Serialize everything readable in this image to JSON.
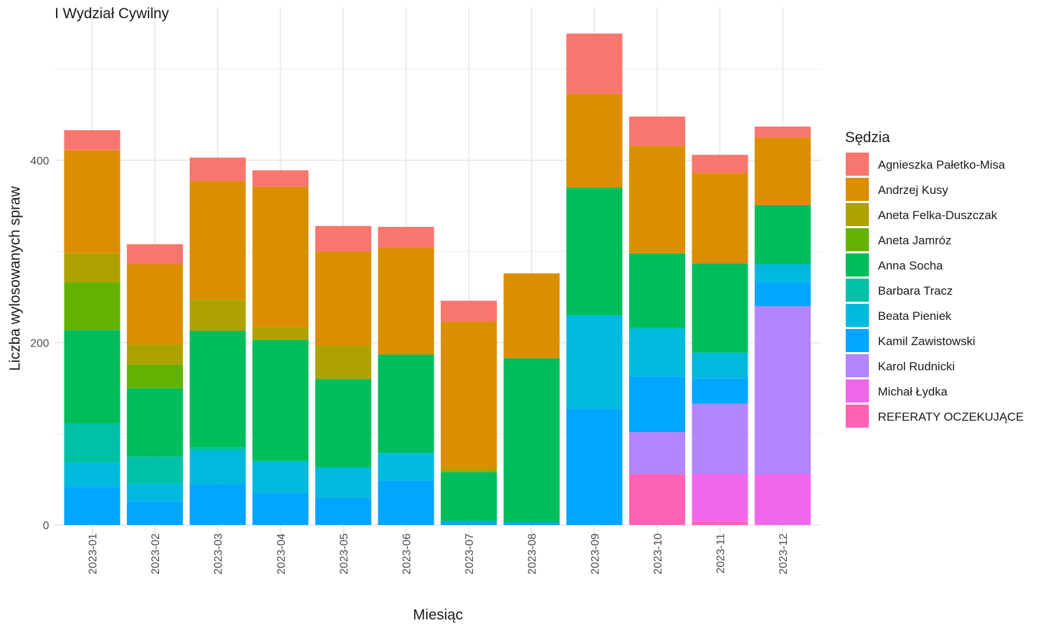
{
  "chart_data": {
    "type": "bar",
    "stacked": true,
    "title": "I Wydział Cywilny",
    "xlabel": "Miesiąc",
    "ylabel": "Liczba wylosowanych spraw",
    "legend_title": "Sędzia",
    "legend_position": "right",
    "grid": true,
    "ylim": [
      -22,
      563
    ],
    "yticks": [
      0,
      200,
      400
    ],
    "categories": [
      "2023-01",
      "2023-02",
      "2023-03",
      "2023-04",
      "2023-05",
      "2023-06",
      "2023-07",
      "2023-08",
      "2023-09",
      "2023-10",
      "2023-11",
      "2023-12"
    ],
    "series": [
      {
        "name": "Agnieszka Pałetko-Misa",
        "color": "#F8766D",
        "values": [
          22,
          22,
          26,
          18,
          28,
          23,
          23,
          0,
          66,
          32,
          20,
          12
        ]
      },
      {
        "name": "Andrzej Kusy",
        "color": "#DB8E00",
        "values": [
          113,
          88,
          130,
          154,
          103,
          117,
          160,
          93,
          103,
          118,
          99,
          74
        ]
      },
      {
        "name": "Aneta Felka-Duszczak",
        "color": "#AEA200",
        "values": [
          32,
          22,
          34,
          14,
          37,
          0,
          5,
          0,
          0,
          0,
          0,
          0
        ]
      },
      {
        "name": "Aneta Jamróz",
        "color": "#64B200",
        "values": [
          52,
          26,
          0,
          0,
          0,
          0,
          0,
          0,
          0,
          0,
          0,
          0
        ]
      },
      {
        "name": "Anna Socha",
        "color": "#00BD5C",
        "values": [
          103,
          75,
          128,
          133,
          97,
          108,
          54,
          180,
          140,
          82,
          98,
          65
        ]
      },
      {
        "name": "Barbara Tracz",
        "color": "#00C1A7",
        "values": [
          43,
          30,
          4,
          0,
          0,
          0,
          0,
          0,
          0,
          0,
          0,
          0
        ]
      },
      {
        "name": "Beata Pieniek",
        "color": "#00BADE",
        "values": [
          26,
          19,
          36,
          35,
          33,
          30,
          0,
          0,
          103,
          53,
          28,
          20
        ]
      },
      {
        "name": "Kamil Zawistowski",
        "color": "#00A6FF",
        "values": [
          42,
          26,
          45,
          35,
          30,
          49,
          4,
          3,
          127,
          61,
          28,
          26
        ]
      },
      {
        "name": "Karol Rudnicki",
        "color": "#B385FF",
        "values": [
          0,
          0,
          0,
          0,
          0,
          0,
          0,
          0,
          0,
          46,
          77,
          184
        ]
      },
      {
        "name": "Michał Łydka",
        "color": "#EF67EB",
        "values": [
          0,
          0,
          0,
          0,
          0,
          0,
          0,
          0,
          0,
          0,
          52,
          56
        ]
      },
      {
        "name": "REFERATY OCZEKUJĄCE",
        "color": "#FF63B6",
        "values": [
          0,
          0,
          0,
          0,
          0,
          0,
          0,
          0,
          0,
          56,
          4,
          0
        ]
      }
    ]
  }
}
